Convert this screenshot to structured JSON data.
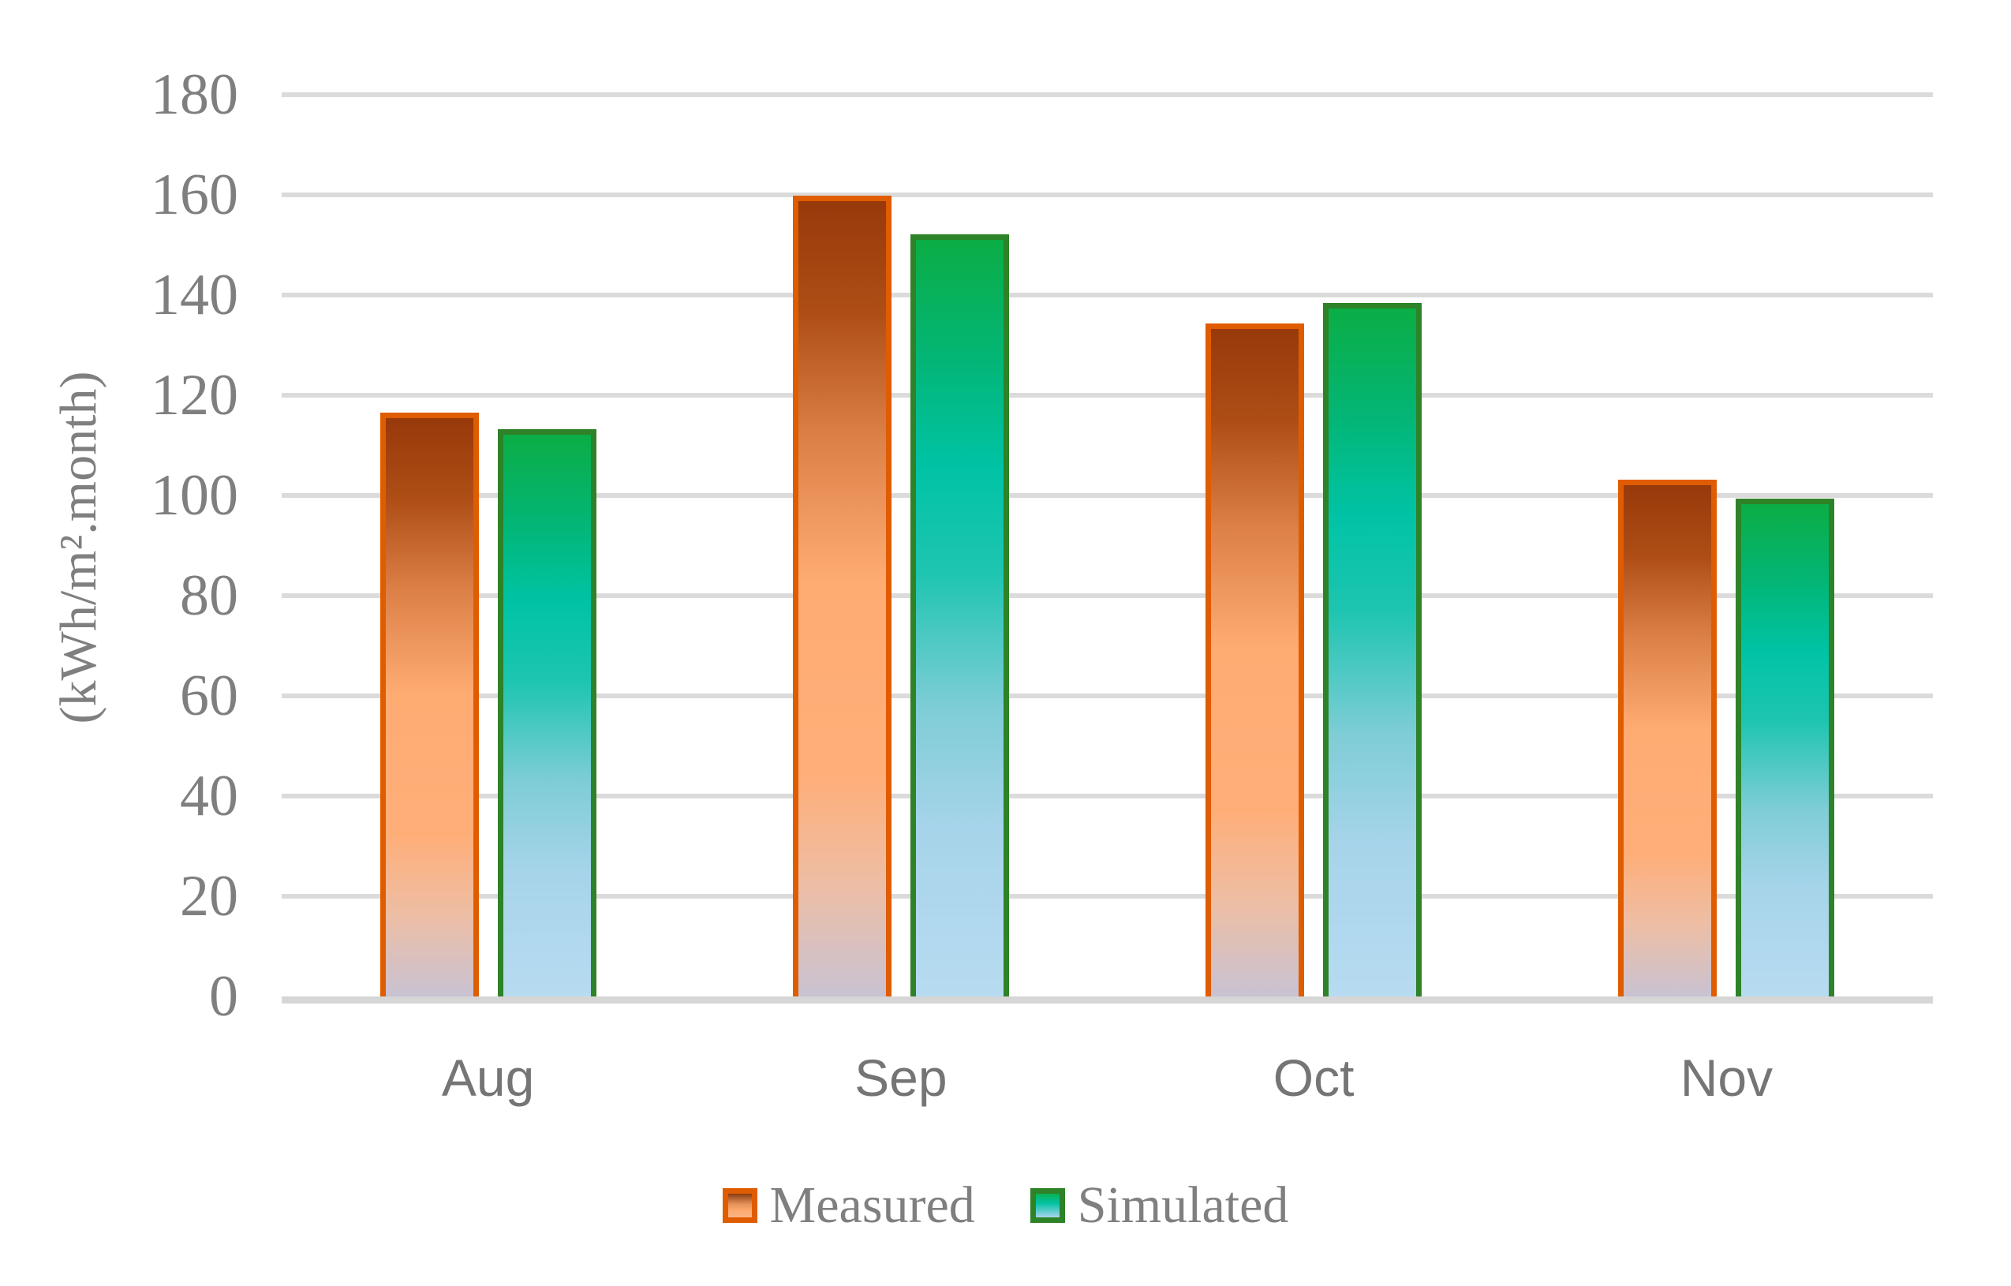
{
  "chart_data": {
    "type": "bar",
    "title": "",
    "categories": [
      "Aug",
      "Sep",
      "Oct",
      "Nov"
    ],
    "series": [
      {
        "name": "Measured",
        "values": [
          116.5,
          159.8,
          134.3,
          103.1
        ],
        "border_color": "#E05C00",
        "gradient": [
          "#97390A 0%",
          "#AE4E16 14%",
          "#DC8148 30%",
          "#FFAC73 48%",
          "#FFAE78 72%",
          "#EDBEA5 86%",
          "#C9C2D2 100%"
        ],
        "legend_gradient": [
          "#8A3C12 0%",
          "#E8935A 45%",
          "#FFAC73 75%",
          "#FBB385 100%"
        ]
      },
      {
        "name": "Simulated",
        "values": [
          113.2,
          152.1,
          138.5,
          99.4
        ],
        "border_color": "#2E8227",
        "gradient": [
          "#0BAD45 0%",
          "#03B677 16%",
          "#00C3A5 30%",
          "#1EC5B0 44%",
          "#7FCDD6 62%",
          "#A7D4EA 78%",
          "#B7DBF1 100%"
        ],
        "legend_gradient": [
          "#0CB152 0%",
          "#00C2A2 40%",
          "#A9D4EE 100%"
        ]
      }
    ],
    "xlabel": "",
    "ylabel": "(kWh/m².month)",
    "ylim": [
      0,
      180
    ],
    "ytick_step": 20,
    "ytick_labels": [
      "0",
      "20",
      "40",
      "60",
      "80",
      "100",
      "120",
      "140",
      "160",
      "180"
    ],
    "grid": "horizontal gridlines",
    "legend_position": "bottom",
    "colors": {
      "gridline": "#DBDBDB",
      "axis_line": "#D6D6D6",
      "tick_label_text": "#7F7F7F",
      "x_label_text": "#757575",
      "legend_text": "#7F7F7F"
    }
  }
}
